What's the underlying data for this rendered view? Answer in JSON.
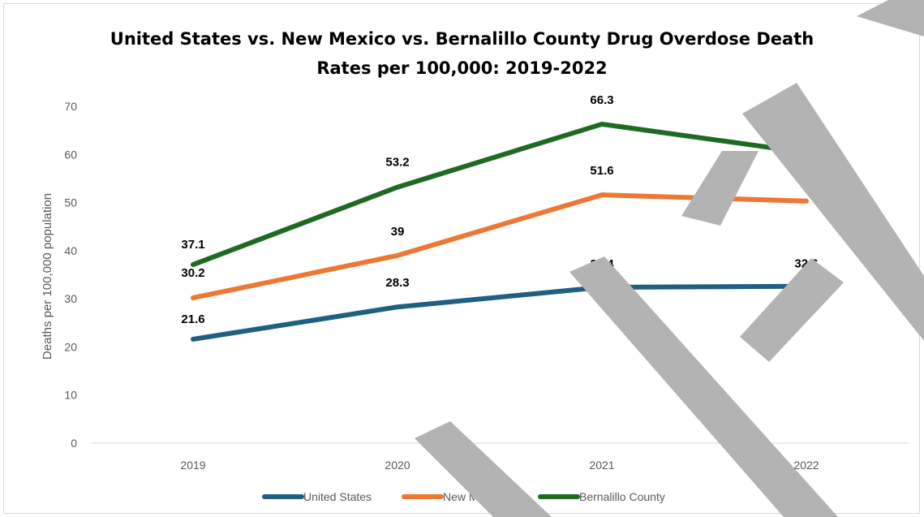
{
  "chart_data": {
    "type": "line",
    "title_lines": [
      "United States vs. New Mexico vs. Bernalillo County Drug Overdose Death",
      "Rates per 100,000: 2019-2022"
    ],
    "xlabel": "",
    "ylabel": "Deaths per 100,000 population",
    "categories": [
      "2019",
      "2020",
      "2021",
      "2022"
    ],
    "ylim": [
      0,
      70
    ],
    "yticks": [
      0,
      10,
      20,
      30,
      40,
      50,
      60,
      70
    ],
    "grid": false,
    "legend_position": "bottom",
    "series": [
      {
        "name": "United States",
        "color": "#1f5f7f",
        "values": [
          21.6,
          28.3,
          32.4,
          32.6
        ],
        "labels": [
          "21.6",
          "28.3",
          "32.4",
          "32.6"
        ]
      },
      {
        "name": "New Mexico",
        "color": "#ed7733",
        "values": [
          30.2,
          39,
          51.6,
          50.3
        ],
        "labels": [
          "30.2",
          "39",
          "51.6",
          "50.3"
        ]
      },
      {
        "name": "Bernalillo County",
        "color": "#1e6a22",
        "values": [
          37.1,
          53.2,
          66.3,
          60.4
        ],
        "labels": [
          "37.1",
          "53.2",
          "66.3",
          "60.4"
        ]
      }
    ]
  },
  "watermark": {
    "text": "DRAFT",
    "color": "#b3b3b3"
  }
}
